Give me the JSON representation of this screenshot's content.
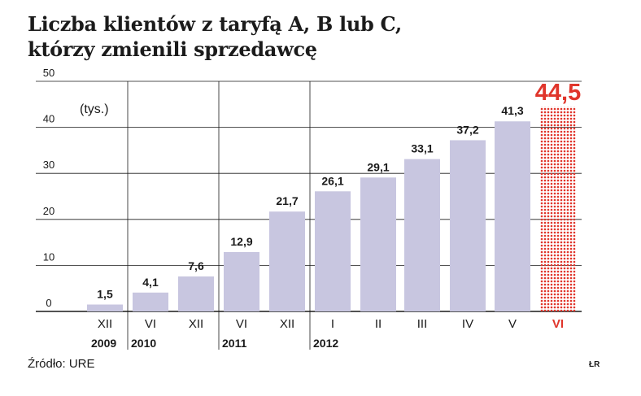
{
  "title_lines": [
    "Liczba klientów z taryfą A, B lub C,",
    "którzy zmienili sprzedawcę"
  ],
  "source": "Źródło: URE",
  "credit": "ŁR",
  "colors": {
    "bar": "#c8c6e0",
    "highlight": "#e0352b",
    "text": "#1a1a1a",
    "axis": "#1a1a1a"
  },
  "chart_data": {
    "type": "bar",
    "title": "Liczba klientów z taryfą A, B lub C, którzy zmienili sprzedawcę",
    "unit_label": "(tys.)",
    "ylim": [
      0,
      50
    ],
    "yticks": [
      "0",
      "10",
      "20",
      "30",
      "40",
      "50"
    ],
    "categories": [
      "XII",
      "VI",
      "XII",
      "VI",
      "XII",
      "I",
      "II",
      "III",
      "IV",
      "V",
      "VI"
    ],
    "values": [
      1.5,
      4.1,
      7.6,
      12.9,
      21.7,
      26.1,
      29.1,
      33.1,
      37.2,
      41.3,
      44.5
    ],
    "value_labels": [
      "1,5",
      "4,1",
      "7,6",
      "12,9",
      "21,7",
      "26,1",
      "29,1",
      "33,1",
      "37,2",
      "41,3",
      "44,5"
    ],
    "highlight_index": 10,
    "year_groups": [
      {
        "label": "2009",
        "start": 0,
        "end": 0
      },
      {
        "label": "2010",
        "start": 1,
        "end": 2
      },
      {
        "label": "2011",
        "start": 3,
        "end": 4
      },
      {
        "label": "2012",
        "start": 5,
        "end": 10
      }
    ],
    "grid": true
  }
}
